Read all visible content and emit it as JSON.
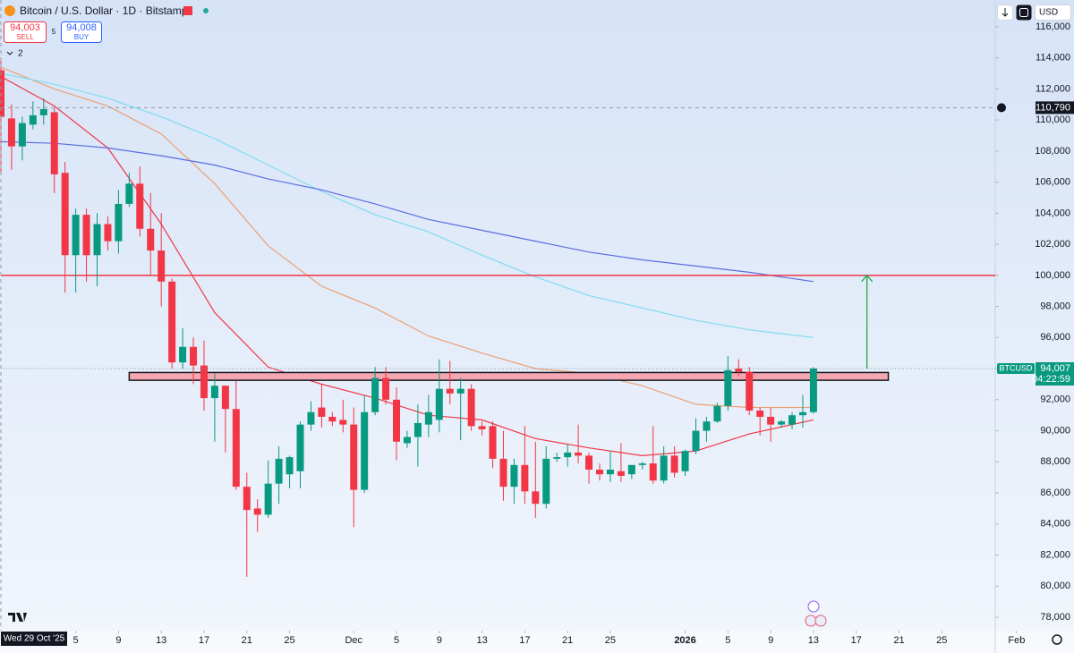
{
  "header": {
    "title": "Bitcoin / U.S. Dollar · 1D · Bitstamp",
    "sell_price": "94,003",
    "sell_label": "SELL",
    "spread": 5,
    "buy_price": "94,008",
    "buy_label": "BUY",
    "indicators_count": 2,
    "currency": "USD"
  },
  "chart_data": {
    "type": "candlestick",
    "xlim": [
      "2025-10-29",
      "2026-01-30"
    ],
    "ylim": [
      77140,
      117720
    ],
    "xticks": [
      {
        "value": "2025-11-05",
        "label": "5"
      },
      {
        "value": "2025-11-09",
        "label": "9"
      },
      {
        "value": "2025-11-13",
        "label": "13"
      },
      {
        "value": "2025-11-17",
        "label": "17"
      },
      {
        "value": "2025-11-21",
        "label": "21"
      },
      {
        "value": "2025-11-25",
        "label": "25"
      },
      {
        "value": "2025-12-01",
        "label": "Dec"
      },
      {
        "value": "2025-12-05",
        "label": "5"
      },
      {
        "value": "2025-12-09",
        "label": "9"
      },
      {
        "value": "2025-12-13",
        "label": "13"
      },
      {
        "value": "2025-12-17",
        "label": "17"
      },
      {
        "value": "2025-12-21",
        "label": "21"
      },
      {
        "value": "2025-12-25",
        "label": "25"
      },
      {
        "value": "2026-01-01",
        "label": "2026"
      },
      {
        "value": "2026-01-05",
        "label": "5"
      },
      {
        "value": "2026-01-09",
        "label": "9"
      },
      {
        "value": "2026-01-13",
        "label": "13"
      },
      {
        "value": "2026-01-17",
        "label": "17"
      },
      {
        "value": "2026-01-21",
        "label": "21"
      },
      {
        "value": "2026-01-25",
        "label": "25"
      },
      {
        "value": "2026-02-01",
        "label": "Feb"
      }
    ],
    "yticks": [
      {
        "value": 78000,
        "label": "78,000"
      },
      {
        "value": 80000,
        "label": "80,000"
      },
      {
        "value": 82000,
        "label": "82,000"
      },
      {
        "value": 84000,
        "label": "84,000"
      },
      {
        "value": 86000,
        "label": "86,000"
      },
      {
        "value": 88000,
        "label": "88,000"
      },
      {
        "value": 90000,
        "label": "90,000"
      },
      {
        "value": 92000,
        "label": "92,000"
      },
      {
        "value": 94000,
        "label": "94,000"
      },
      {
        "value": 96000,
        "label": "96,000"
      },
      {
        "value": 98000,
        "label": "98,000"
      },
      {
        "value": 100000,
        "label": "100,000"
      },
      {
        "value": 102000,
        "label": "102,000"
      },
      {
        "value": 104000,
        "label": "104,000"
      },
      {
        "value": 106000,
        "label": "106,000"
      },
      {
        "value": 108000,
        "label": "108,000"
      },
      {
        "value": 110000,
        "label": "110,000"
      },
      {
        "value": 112000,
        "label": "112,000"
      },
      {
        "value": 114000,
        "label": "114,000"
      },
      {
        "value": 116000,
        "label": "116,000"
      }
    ],
    "grid": false,
    "up_color": "#089981",
    "down_color": "#f23645",
    "x": [
      "2025-10-29",
      "2025-10-30",
      "2025-10-31",
      "2025-11-01",
      "2025-11-02",
      "2025-11-03",
      "2025-11-04",
      "2025-11-05",
      "2025-11-06",
      "2025-11-07",
      "2025-11-08",
      "2025-11-09",
      "2025-11-10",
      "2025-11-11",
      "2025-11-12",
      "2025-11-13",
      "2025-11-14",
      "2025-11-15",
      "2025-11-16",
      "2025-11-17",
      "2025-11-18",
      "2025-11-19",
      "2025-11-20",
      "2025-11-21",
      "2025-11-22",
      "2025-11-23",
      "2025-11-24",
      "2025-11-25",
      "2025-11-26",
      "2025-11-27",
      "2025-11-28",
      "2025-11-29",
      "2025-11-30",
      "2025-12-01",
      "2025-12-02",
      "2025-12-03",
      "2025-12-04",
      "2025-12-05",
      "2025-12-06",
      "2025-12-07",
      "2025-12-08",
      "2025-12-09",
      "2025-12-10",
      "2025-12-11",
      "2025-12-12",
      "2025-12-13",
      "2025-12-14",
      "2025-12-15",
      "2025-12-16",
      "2025-12-17",
      "2025-12-18",
      "2025-12-19",
      "2025-12-20",
      "2025-12-21",
      "2025-12-22",
      "2025-12-23",
      "2025-12-24",
      "2025-12-25",
      "2025-12-26",
      "2025-12-27",
      "2025-12-28",
      "2025-12-29",
      "2025-12-30",
      "2025-12-31",
      "2026-01-01",
      "2026-01-02",
      "2026-01-03",
      "2026-01-04",
      "2026-01-05",
      "2026-01-06",
      "2026-01-07",
      "2026-01-08",
      "2026-01-09",
      "2026-01-10",
      "2026-01-11",
      "2026-01-12",
      "2026-01-13"
    ],
    "open": [
      113200,
      110100,
      108300,
      109700,
      110300,
      110500,
      106600,
      101300,
      103900,
      101300,
      103300,
      102200,
      104600,
      105900,
      103000,
      101600,
      99600,
      94400,
      95400,
      94200,
      92100,
      92900,
      91400,
      86400,
      85000,
      84600,
      86600,
      87200,
      87400,
      90400,
      91500,
      90900,
      90700,
      90400,
      86200,
      91200,
      93400,
      92000,
      89200,
      89600,
      90400,
      90700,
      92700,
      92400,
      92700,
      90300,
      90300,
      88200,
      86400,
      87800,
      86100,
      85300,
      88200,
      88300,
      88600,
      88400,
      87500,
      87200,
      87400,
      87200,
      87800,
      87900,
      86800,
      88400,
      87400,
      88700,
      90000,
      90600,
      91600,
      94000,
      93800,
      91300,
      90900,
      90400,
      90400,
      91000,
      91200
    ],
    "high": [
      114000,
      111000,
      110200,
      111200,
      111400,
      110800,
      107300,
      104300,
      104300,
      104000,
      103800,
      105500,
      106600,
      107000,
      105300,
      104000,
      99800,
      96600,
      96000,
      95800,
      93700,
      92900,
      93200,
      87300,
      85600,
      88100,
      89000,
      88400,
      90600,
      91900,
      93000,
      91200,
      92000,
      91500,
      92300,
      94100,
      94100,
      92800,
      90000,
      91700,
      92300,
      94600,
      94500,
      93400,
      93000,
      90600,
      90600,
      90000,
      88200,
      90300,
      89300,
      89000,
      88600,
      89100,
      90400,
      88600,
      87900,
      88700,
      89200,
      87700,
      88000,
      90300,
      89000,
      89000,
      88800,
      90800,
      90900,
      91800,
      94800,
      94600,
      94100,
      91500,
      91500,
      90700,
      91200,
      92300,
      94100
    ],
    "low": [
      106500,
      106800,
      107400,
      109400,
      109700,
      105300,
      98900,
      98900,
      99600,
      99300,
      101600,
      101400,
      104400,
      102500,
      100000,
      98000,
      94000,
      94000,
      93000,
      91300,
      89300,
      88600,
      86200,
      80600,
      83500,
      84400,
      85300,
      86300,
      86300,
      90000,
      90200,
      90300,
      89900,
      83800,
      86000,
      91000,
      91700,
      88100,
      88900,
      87700,
      89600,
      89900,
      91700,
      89400,
      90000,
      89700,
      87600,
      85500,
      85300,
      85300,
      84400,
      85000,
      88000,
      87700,
      87900,
      86600,
      86800,
      86700,
      86700,
      86900,
      87500,
      86600,
      86600,
      87000,
      87100,
      88500,
      89300,
      90500,
      91300,
      93500,
      91000,
      89700,
      89300,
      90200,
      90100,
      90200,
      91100
    ],
    "close": [
      110200,
      108300,
      109800,
      110300,
      110700,
      106500,
      101300,
      103900,
      101300,
      103300,
      102200,
      104600,
      105900,
      103000,
      101600,
      99600,
      94400,
      95400,
      94200,
      92100,
      92900,
      91400,
      86400,
      84900,
      84600,
      86600,
      88200,
      88300,
      90400,
      91200,
      90900,
      90600,
      90400,
      86200,
      91200,
      93400,
      92000,
      89300,
      89600,
      90500,
      91200,
      92700,
      92400,
      92700,
      90300,
      90100,
      88200,
      86400,
      87800,
      86100,
      85300,
      88200,
      88300,
      88600,
      88400,
      87500,
      87200,
      87500,
      87100,
      87800,
      87900,
      86800,
      88400,
      87300,
      88700,
      90000,
      90600,
      91600,
      93900,
      93800,
      91300,
      90900,
      90400,
      90600,
      91000,
      91200,
      94007
    ],
    "moving_averages": [
      {
        "color": "#f23645",
        "x": [
          "2025-10-29",
          "2025-11-03",
          "2025-11-08",
          "2025-11-13",
          "2025-11-18",
          "2025-11-23",
          "2025-11-28",
          "2025-12-03",
          "2025-12-08",
          "2025-12-13",
          "2025-12-18",
          "2025-12-23",
          "2025-12-28",
          "2026-01-02",
          "2026-01-07",
          "2026-01-13"
        ],
        "values": [
          112800,
          110900,
          108200,
          103300,
          97600,
          94100,
          93000,
          92100,
          91000,
          90700,
          89500,
          88900,
          88400,
          88700,
          89800,
          90700
        ]
      },
      {
        "color": "#eba074",
        "x": [
          "2025-10-29",
          "2025-11-03",
          "2025-11-08",
          "2025-11-13",
          "2025-11-18",
          "2025-11-23",
          "2025-11-28",
          "2025-12-03",
          "2025-12-08",
          "2025-12-13",
          "2025-12-18",
          "2025-12-23",
          "2025-12-28",
          "2026-01-02",
          "2026-01-07",
          "2026-01-13"
        ],
        "values": [
          113400,
          112000,
          110900,
          109100,
          105900,
          101900,
          99300,
          97900,
          96100,
          95000,
          94000,
          93700,
          92900,
          91700,
          91500,
          91500
        ]
      },
      {
        "color": "#7fdcf0",
        "x": [
          "2025-10-29",
          "2025-11-03",
          "2025-11-08",
          "2025-11-13",
          "2025-11-18",
          "2025-11-23",
          "2025-11-28",
          "2025-12-03",
          "2025-12-08",
          "2025-12-13",
          "2025-12-18",
          "2025-12-23",
          "2025-12-28",
          "2026-01-02",
          "2026-01-07",
          "2026-01-13"
        ],
        "values": [
          113000,
          112300,
          111400,
          110200,
          108800,
          107100,
          105400,
          103900,
          102800,
          101300,
          99900,
          98700,
          97900,
          97100,
          96500,
          96000
        ]
      },
      {
        "color": "#5b6ee1",
        "x": [
          "2025-10-29",
          "2025-11-03",
          "2025-11-08",
          "2025-11-13",
          "2025-11-18",
          "2025-11-23",
          "2025-11-28",
          "2025-12-03",
          "2025-12-08",
          "2025-12-13",
          "2025-12-18",
          "2025-12-23",
          "2025-12-28",
          "2026-01-02",
          "2026-01-07",
          "2026-01-13"
        ],
        "values": [
          108600,
          108500,
          108200,
          107700,
          107100,
          106200,
          105500,
          104600,
          103600,
          102900,
          102200,
          101500,
          101000,
          100600,
          100200,
          99600
        ]
      }
    ],
    "level_line": {
      "value": 100000,
      "color": "#f23645"
    },
    "zone": {
      "x": [
        "2025-11-10",
        "2026-01-20"
      ],
      "y": [
        93250,
        93750
      ],
      "color": "#f4a7b0"
    },
    "arrow": {
      "x": "2026-01-18",
      "y": [
        94000,
        100000
      ],
      "color": "#22ab45"
    },
    "last_price": {
      "value": 94007,
      "label": "94,007",
      "symbol": "BTCUSD",
      "countdown": "04:22:59"
    },
    "crosshair": {
      "x": "2025-10-29",
      "x_label": "Wed 29 Oct '25",
      "y": 110790,
      "y_label": "110,790"
    }
  }
}
